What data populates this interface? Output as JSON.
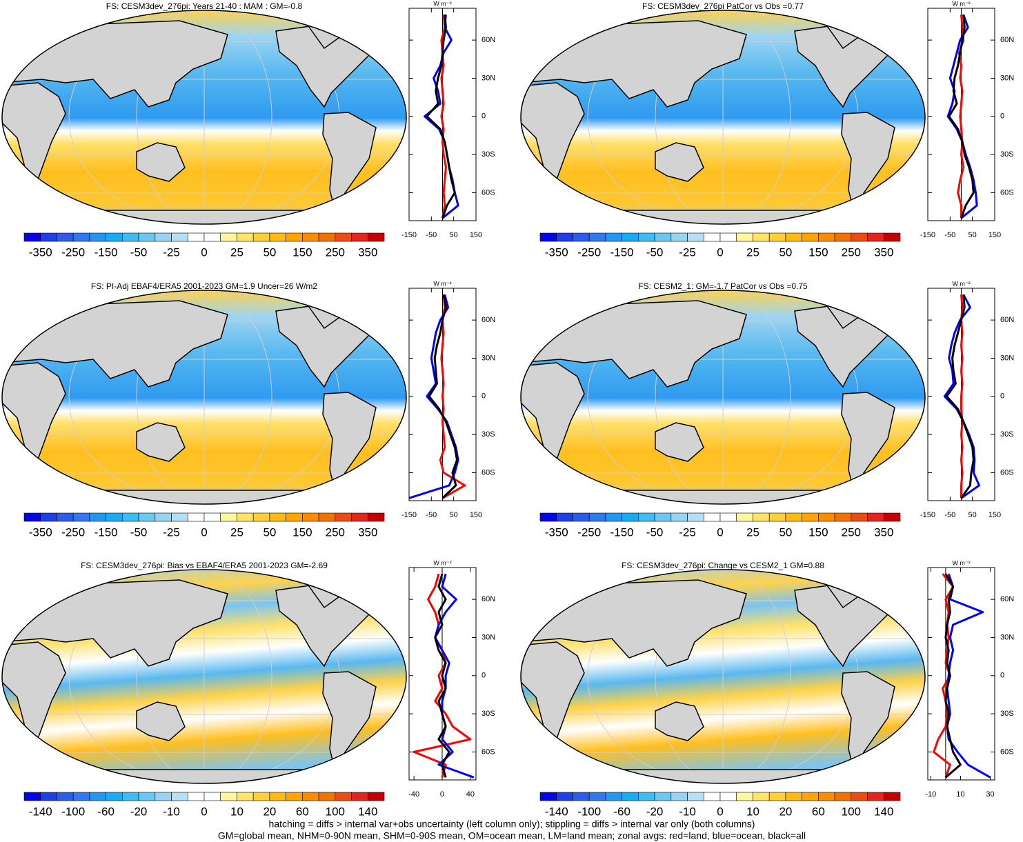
{
  "panels": [
    {
      "title": "FS: CESM3dev_276pi: Years 21-40 : MAM : GM=-0.8",
      "colorbar": [
        -350,
        -250,
        -150,
        -50,
        -25,
        0,
        25,
        50,
        150,
        250,
        350
      ],
      "zonal": {
        "type": "line",
        "unit": "W m⁻²",
        "xlim": [
          -150,
          150
        ],
        "xticks": [
          -150,
          -50,
          50,
          150
        ],
        "ylim": [
          -82,
          85
        ],
        "yticks": [
          {
            "value": 60,
            "label": "60N"
          },
          {
            "value": 30,
            "label": "30N"
          },
          0,
          {
            "value": -30,
            "label": "30S"
          },
          {
            "value": -60,
            "label": "60S"
          }
        ],
        "lat": [
          80,
          70,
          60,
          50,
          40,
          30,
          20,
          10,
          0,
          -10,
          -20,
          -30,
          -40,
          -50,
          -60,
          -70,
          -80
        ],
        "series": [
          {
            "color": "#ff0000",
            "values": [
              5,
              10,
              -5,
              0,
              5,
              -5,
              0,
              5,
              -5,
              5,
              0,
              5,
              15,
              10,
              5,
              10,
              0
            ]
          },
          {
            "color": "#0000ff",
            "values": [
              15,
              10,
              40,
              5,
              -10,
              -40,
              -20,
              -10,
              -80,
              -15,
              10,
              20,
              30,
              45,
              55,
              70,
              0
            ]
          },
          {
            "color": "#000000",
            "values": [
              10,
              15,
              5,
              0,
              -5,
              -20,
              -30,
              -20,
              -70,
              -10,
              10,
              20,
              30,
              40,
              55,
              20,
              0
            ]
          }
        ]
      }
    },
    {
      "title": "FS: CESM3dev_276pi PatCor vs Obs =0.77",
      "colorbar": [
        -350,
        -250,
        -150,
        -50,
        -25,
        0,
        25,
        50,
        150,
        250,
        350
      ],
      "zonal": {
        "type": "line",
        "unit": "W m⁻²",
        "xlim": [
          -150,
          150
        ],
        "xticks": [
          -150,
          -50,
          50,
          150
        ],
        "ylim": [
          -82,
          85
        ],
        "yticks": [
          {
            "value": 60,
            "label": "60N"
          },
          {
            "value": 30,
            "label": "30N"
          },
          0,
          {
            "value": -30,
            "label": "30S"
          },
          {
            "value": -60,
            "label": "60S"
          }
        ],
        "lat": [
          80,
          70,
          60,
          50,
          40,
          30,
          20,
          10,
          0,
          -10,
          -20,
          -30,
          -40,
          -50,
          -60,
          -70,
          -80
        ],
        "series": [
          {
            "color": "#ff0000",
            "values": [
              0,
              5,
              10,
              -10,
              0,
              -5,
              5,
              0,
              -5,
              0,
              5,
              0,
              10,
              -5,
              -15,
              0,
              0
            ]
          },
          {
            "color": "#0000ff",
            "values": [
              10,
              30,
              -5,
              -20,
              -35,
              -50,
              -30,
              -40,
              -60,
              -20,
              5,
              20,
              40,
              55,
              65,
              70,
              0
            ]
          },
          {
            "color": "#000000",
            "values": [
              10,
              15,
              5,
              -5,
              -15,
              -30,
              -35,
              -20,
              -55,
              -15,
              5,
              15,
              35,
              50,
              55,
              20,
              0
            ]
          }
        ]
      }
    },
    {
      "title": "FS: PI-Adj EBAF4/ERA5 2001-2023 GM=1.9 Uncer=26 W/m2",
      "colorbar": [
        -350,
        -250,
        -150,
        -50,
        -25,
        0,
        25,
        50,
        150,
        250,
        350
      ],
      "zonal": {
        "type": "line",
        "unit": "W m⁻²",
        "xlim": [
          -150,
          150
        ],
        "xticks": [
          -150,
          -50,
          50,
          150
        ],
        "ylim": [
          -82,
          85
        ],
        "yticks": [
          {
            "value": 60,
            "label": "60N"
          },
          {
            "value": 30,
            "label": "30N"
          },
          0,
          {
            "value": -30,
            "label": "30S"
          },
          {
            "value": -60,
            "label": "60S"
          }
        ],
        "lat": [
          80,
          70,
          60,
          50,
          40,
          30,
          20,
          10,
          0,
          -10,
          -20,
          -30,
          -40,
          -50,
          -60,
          -70,
          -80
        ],
        "series": [
          {
            "color": "#ff0000",
            "values": [
              5,
              10,
              0,
              5,
              0,
              -5,
              0,
              5,
              0,
              5,
              0,
              5,
              10,
              -10,
              5,
              100,
              0
            ]
          },
          {
            "color": "#0000ff",
            "values": [
              10,
              25,
              -10,
              -30,
              -40,
              -50,
              -40,
              -30,
              -70,
              -20,
              20,
              40,
              60,
              70,
              55,
              30,
              -150
            ]
          },
          {
            "color": "#000000",
            "values": [
              5,
              15,
              0,
              -10,
              -25,
              -35,
              -30,
              -25,
              -60,
              -15,
              15,
              35,
              55,
              65,
              45,
              60,
              0
            ]
          }
        ]
      }
    },
    {
      "title": "FS: CESM2_1: GM=-1.7 PatCor vs Obs =0.75",
      "colorbar": [
        -350,
        -250,
        -150,
        -50,
        -25,
        0,
        25,
        50,
        150,
        250,
        350
      ],
      "zonal": {
        "type": "line",
        "unit": "W m⁻²",
        "xlim": [
          -150,
          150
        ],
        "xticks": [
          -150,
          -50,
          50,
          150
        ],
        "ylim": [
          -82,
          85
        ],
        "yticks": [
          {
            "value": 60,
            "label": "60N"
          },
          {
            "value": 30,
            "label": "30N"
          },
          0,
          {
            "value": -30,
            "label": "30S"
          },
          {
            "value": -60,
            "label": "60S"
          }
        ],
        "lat": [
          80,
          70,
          60,
          50,
          40,
          30,
          20,
          10,
          0,
          -10,
          -20,
          -30,
          -40,
          -50,
          -60,
          -70,
          -80
        ],
        "series": [
          {
            "color": "#ff0000",
            "values": [
              0,
              5,
              0,
              5,
              0,
              5,
              0,
              5,
              0,
              0,
              5,
              0,
              5,
              0,
              5,
              0,
              0
            ]
          },
          {
            "color": "#0000ff",
            "values": [
              10,
              40,
              -5,
              -30,
              -45,
              -55,
              -40,
              -35,
              -75,
              -20,
              10,
              35,
              55,
              60,
              55,
              80,
              0
            ]
          },
          {
            "color": "#000000",
            "values": [
              10,
              15,
              0,
              -15,
              -30,
              -40,
              -35,
              -25,
              -65,
              -15,
              10,
              30,
              50,
              55,
              45,
              40,
              0
            ]
          }
        ]
      }
    },
    {
      "title": "FS: CESM3dev_276pi: Bias vs EBAF4/ERA5 2001-2023 GM=-2.69",
      "colorbar": [
        -140,
        -100,
        -60,
        -20,
        -10,
        0,
        10,
        20,
        60,
        100,
        140
      ],
      "zonal": {
        "type": "line",
        "unit": "W m⁻²",
        "xlim": [
          -47,
          48
        ],
        "xticks": [
          -40,
          0,
          40
        ],
        "ylim": [
          -82,
          85
        ],
        "yticks": [
          {
            "value": 60,
            "label": "60N"
          },
          {
            "value": 30,
            "label": "30N"
          },
          0,
          {
            "value": -30,
            "label": "30S"
          },
          {
            "value": -60,
            "label": "60S"
          }
        ],
        "lat": [
          80,
          70,
          60,
          50,
          40,
          30,
          20,
          10,
          0,
          -10,
          -20,
          -30,
          -40,
          -50,
          -60,
          -70,
          -80
        ],
        "series": [
          {
            "color": "#ff0000",
            "values": [
              -5,
              -10,
              -20,
              -10,
              -5,
              -10,
              0,
              5,
              -5,
              0,
              -10,
              5,
              15,
              40,
              -40,
              5,
              0
            ]
          },
          {
            "color": "#0000ff",
            "values": [
              5,
              0,
              20,
              5,
              -5,
              -10,
              0,
              10,
              5,
              5,
              0,
              0,
              5,
              0,
              15,
              -5,
              45
            ]
          },
          {
            "color": "#000000",
            "values": [
              0,
              -5,
              5,
              -5,
              0,
              -10,
              -5,
              5,
              0,
              5,
              -5,
              0,
              5,
              -5,
              10,
              0,
              5
            ]
          }
        ]
      }
    },
    {
      "title": "FS: CESM3dev_276pi: Change vs CESM2_1 GM=0.88",
      "colorbar": [
        -140,
        -100,
        -60,
        -20,
        -10,
        0,
        10,
        20,
        60,
        100,
        140
      ],
      "zonal": {
        "type": "line",
        "unit": "W m⁻²",
        "xlim": [
          -12,
          33
        ],
        "xticks": [
          -10,
          10,
          30
        ],
        "ylim": [
          -82,
          85
        ],
        "yticks": [
          {
            "value": 60,
            "label": "60N"
          },
          {
            "value": 30,
            "label": "30N"
          },
          0,
          {
            "value": -30,
            "label": "30S"
          },
          {
            "value": -60,
            "label": "60S"
          }
        ],
        "lat": [
          80,
          70,
          60,
          50,
          40,
          30,
          20,
          10,
          0,
          -10,
          -20,
          -30,
          -40,
          -50,
          -60,
          -70,
          -80
        ],
        "series": [
          {
            "color": "#ff0000",
            "values": [
              -2,
              5,
              0,
              2,
              1,
              2,
              1,
              0,
              3,
              -2,
              0,
              1,
              0,
              -5,
              -8,
              3,
              0
            ]
          },
          {
            "color": "#0000ff",
            "values": [
              2,
              5,
              3,
              25,
              5,
              3,
              5,
              3,
              2,
              1,
              2,
              3,
              1,
              2,
              8,
              15,
              30
            ]
          },
          {
            "color": "#000000",
            "values": [
              0,
              5,
              2,
              3,
              1,
              0,
              2,
              1,
              3,
              1,
              0,
              2,
              1,
              3,
              5,
              10,
              0
            ]
          }
        ]
      }
    }
  ],
  "palette": [
    "#0505e8",
    "#1e3fe6",
    "#2b5ee8",
    "#2f78ee",
    "#2596ef",
    "#1aaaf2",
    "#3fbcf3",
    "#6ac8f2",
    "#98d4f2",
    "#b5e0f4",
    "#ffffff",
    "#ffffff",
    "#fff7a0",
    "#ffe36a",
    "#ffcf3a",
    "#ffba14",
    "#ffa400",
    "#f98d00",
    "#f27200",
    "#eb4c14",
    "#e1261e",
    "#c40000"
  ],
  "footer": [
    "hatching = diffs > internal var+obs uncertainty (left column only); stippling = diffs > internal var only (both columns)",
    "GM=global mean, NHM=0-90N mean, SHM=0-90S mean, OM=ocean mean, LM=land mean; zonal avgs: red=land, blue=ocean, black=all"
  ]
}
